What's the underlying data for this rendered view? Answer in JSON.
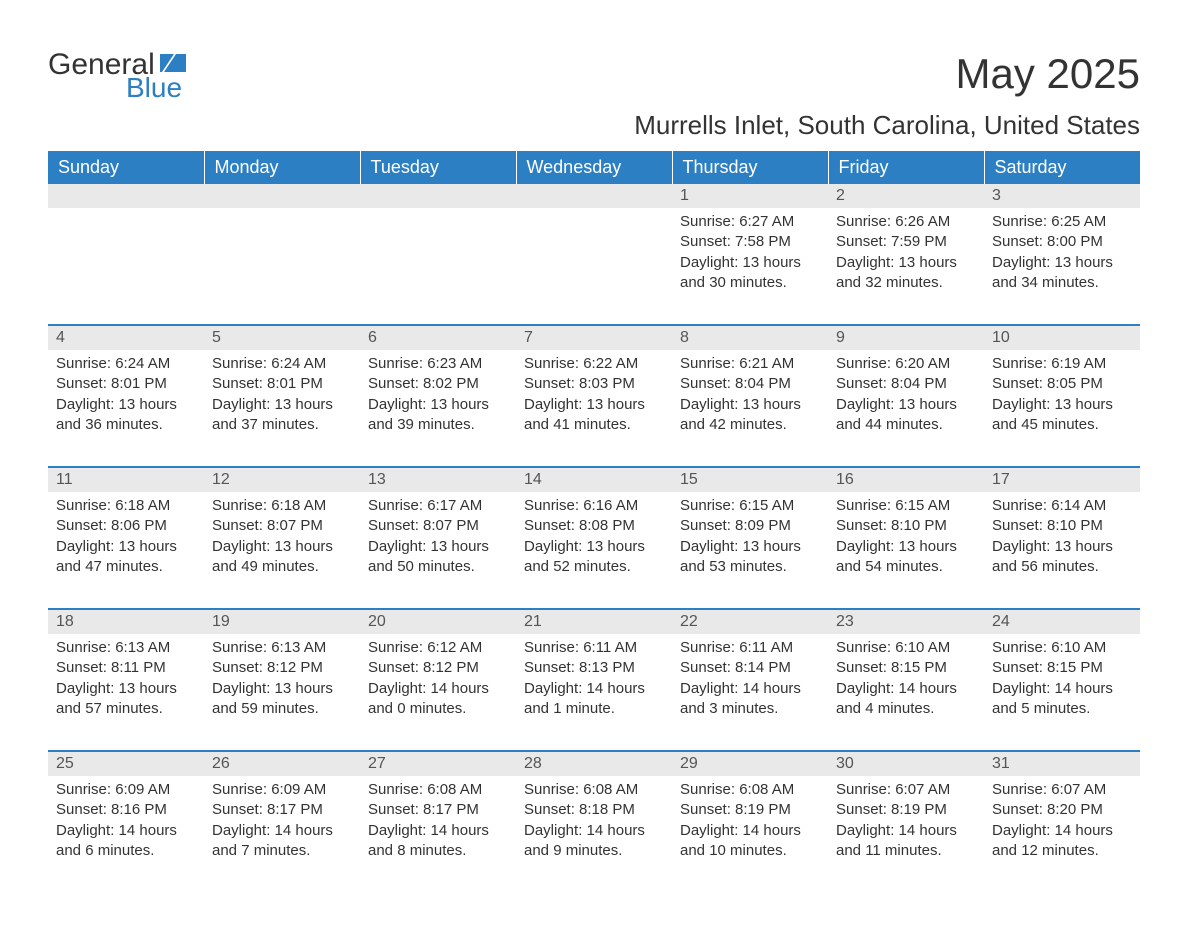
{
  "logo": {
    "word1": "General",
    "word2": "Blue",
    "accent_color": "#2d7fc4"
  },
  "title": "May 2025",
  "subtitle": "Murrells Inlet, South Carolina, United States",
  "colors": {
    "header_bg": "#2d7fc4",
    "header_text": "#ffffff",
    "daynum_bg": "#e9e9e9",
    "body_text": "#333333",
    "separator": "#2d7fc4"
  },
  "day_headers": [
    "Sunday",
    "Monday",
    "Tuesday",
    "Wednesday",
    "Thursday",
    "Friday",
    "Saturday"
  ],
  "weeks": [
    [
      null,
      null,
      null,
      null,
      {
        "n": "1",
        "sunrise": "6:27 AM",
        "sunset": "7:58 PM",
        "daylight": "13 hours and 30 minutes."
      },
      {
        "n": "2",
        "sunrise": "6:26 AM",
        "sunset": "7:59 PM",
        "daylight": "13 hours and 32 minutes."
      },
      {
        "n": "3",
        "sunrise": "6:25 AM",
        "sunset": "8:00 PM",
        "daylight": "13 hours and 34 minutes."
      }
    ],
    [
      {
        "n": "4",
        "sunrise": "6:24 AM",
        "sunset": "8:01 PM",
        "daylight": "13 hours and 36 minutes."
      },
      {
        "n": "5",
        "sunrise": "6:24 AM",
        "sunset": "8:01 PM",
        "daylight": "13 hours and 37 minutes."
      },
      {
        "n": "6",
        "sunrise": "6:23 AM",
        "sunset": "8:02 PM",
        "daylight": "13 hours and 39 minutes."
      },
      {
        "n": "7",
        "sunrise": "6:22 AM",
        "sunset": "8:03 PM",
        "daylight": "13 hours and 41 minutes."
      },
      {
        "n": "8",
        "sunrise": "6:21 AM",
        "sunset": "8:04 PM",
        "daylight": "13 hours and 42 minutes."
      },
      {
        "n": "9",
        "sunrise": "6:20 AM",
        "sunset": "8:04 PM",
        "daylight": "13 hours and 44 minutes."
      },
      {
        "n": "10",
        "sunrise": "6:19 AM",
        "sunset": "8:05 PM",
        "daylight": "13 hours and 45 minutes."
      }
    ],
    [
      {
        "n": "11",
        "sunrise": "6:18 AM",
        "sunset": "8:06 PM",
        "daylight": "13 hours and 47 minutes."
      },
      {
        "n": "12",
        "sunrise": "6:18 AM",
        "sunset": "8:07 PM",
        "daylight": "13 hours and 49 minutes."
      },
      {
        "n": "13",
        "sunrise": "6:17 AM",
        "sunset": "8:07 PM",
        "daylight": "13 hours and 50 minutes."
      },
      {
        "n": "14",
        "sunrise": "6:16 AM",
        "sunset": "8:08 PM",
        "daylight": "13 hours and 52 minutes."
      },
      {
        "n": "15",
        "sunrise": "6:15 AM",
        "sunset": "8:09 PM",
        "daylight": "13 hours and 53 minutes."
      },
      {
        "n": "16",
        "sunrise": "6:15 AM",
        "sunset": "8:10 PM",
        "daylight": "13 hours and 54 minutes."
      },
      {
        "n": "17",
        "sunrise": "6:14 AM",
        "sunset": "8:10 PM",
        "daylight": "13 hours and 56 minutes."
      }
    ],
    [
      {
        "n": "18",
        "sunrise": "6:13 AM",
        "sunset": "8:11 PM",
        "daylight": "13 hours and 57 minutes."
      },
      {
        "n": "19",
        "sunrise": "6:13 AM",
        "sunset": "8:12 PM",
        "daylight": "13 hours and 59 minutes."
      },
      {
        "n": "20",
        "sunrise": "6:12 AM",
        "sunset": "8:12 PM",
        "daylight": "14 hours and 0 minutes."
      },
      {
        "n": "21",
        "sunrise": "6:11 AM",
        "sunset": "8:13 PM",
        "daylight": "14 hours and 1 minute."
      },
      {
        "n": "22",
        "sunrise": "6:11 AM",
        "sunset": "8:14 PM",
        "daylight": "14 hours and 3 minutes."
      },
      {
        "n": "23",
        "sunrise": "6:10 AM",
        "sunset": "8:15 PM",
        "daylight": "14 hours and 4 minutes."
      },
      {
        "n": "24",
        "sunrise": "6:10 AM",
        "sunset": "8:15 PM",
        "daylight": "14 hours and 5 minutes."
      }
    ],
    [
      {
        "n": "25",
        "sunrise": "6:09 AM",
        "sunset": "8:16 PM",
        "daylight": "14 hours and 6 minutes."
      },
      {
        "n": "26",
        "sunrise": "6:09 AM",
        "sunset": "8:17 PM",
        "daylight": "14 hours and 7 minutes."
      },
      {
        "n": "27",
        "sunrise": "6:08 AM",
        "sunset": "8:17 PM",
        "daylight": "14 hours and 8 minutes."
      },
      {
        "n": "28",
        "sunrise": "6:08 AM",
        "sunset": "8:18 PM",
        "daylight": "14 hours and 9 minutes."
      },
      {
        "n": "29",
        "sunrise": "6:08 AM",
        "sunset": "8:19 PM",
        "daylight": "14 hours and 10 minutes."
      },
      {
        "n": "30",
        "sunrise": "6:07 AM",
        "sunset": "8:19 PM",
        "daylight": "14 hours and 11 minutes."
      },
      {
        "n": "31",
        "sunrise": "6:07 AM",
        "sunset": "8:20 PM",
        "daylight": "14 hours and 12 minutes."
      }
    ]
  ],
  "labels": {
    "sunrise": "Sunrise:",
    "sunset": "Sunset:",
    "daylight": "Daylight:"
  }
}
